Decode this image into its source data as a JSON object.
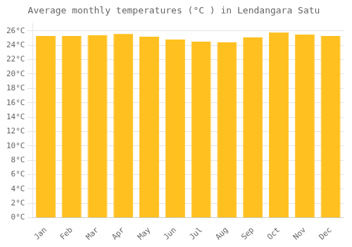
{
  "chart_data": {
    "type": "bar",
    "title": "Average monthly temperatures (°C ) in Lendangara Satu",
    "categories": [
      "Jan",
      "Feb",
      "Mar",
      "Apr",
      "May",
      "Jun",
      "Jul",
      "Aug",
      "Sep",
      "Oct",
      "Nov",
      "Dec"
    ],
    "values": [
      25.3,
      25.3,
      25.4,
      25.6,
      25.2,
      24.8,
      24.5,
      24.4,
      25.1,
      25.8,
      25.5,
      25.3
    ],
    "color": "#FFC020",
    "ylim": [
      0,
      27
    ],
    "yticks": [
      {
        "value": 0,
        "label": "0°C"
      },
      {
        "value": 2,
        "label": "2°C"
      },
      {
        "value": 4,
        "label": "4°C"
      },
      {
        "value": 6,
        "label": "6°C"
      },
      {
        "value": 8,
        "label": "8°C"
      },
      {
        "value": 10,
        "label": "10°C"
      },
      {
        "value": 12,
        "label": "12°C"
      },
      {
        "value": 14,
        "label": "14°C"
      },
      {
        "value": 16,
        "label": "16°C"
      },
      {
        "value": 18,
        "label": "18°C"
      },
      {
        "value": 20,
        "label": "20°C"
      },
      {
        "value": 22,
        "label": "22°C"
      },
      {
        "value": 24,
        "label": "24°C"
      },
      {
        "value": 26,
        "label": "26°C"
      }
    ],
    "grid": "y"
  }
}
